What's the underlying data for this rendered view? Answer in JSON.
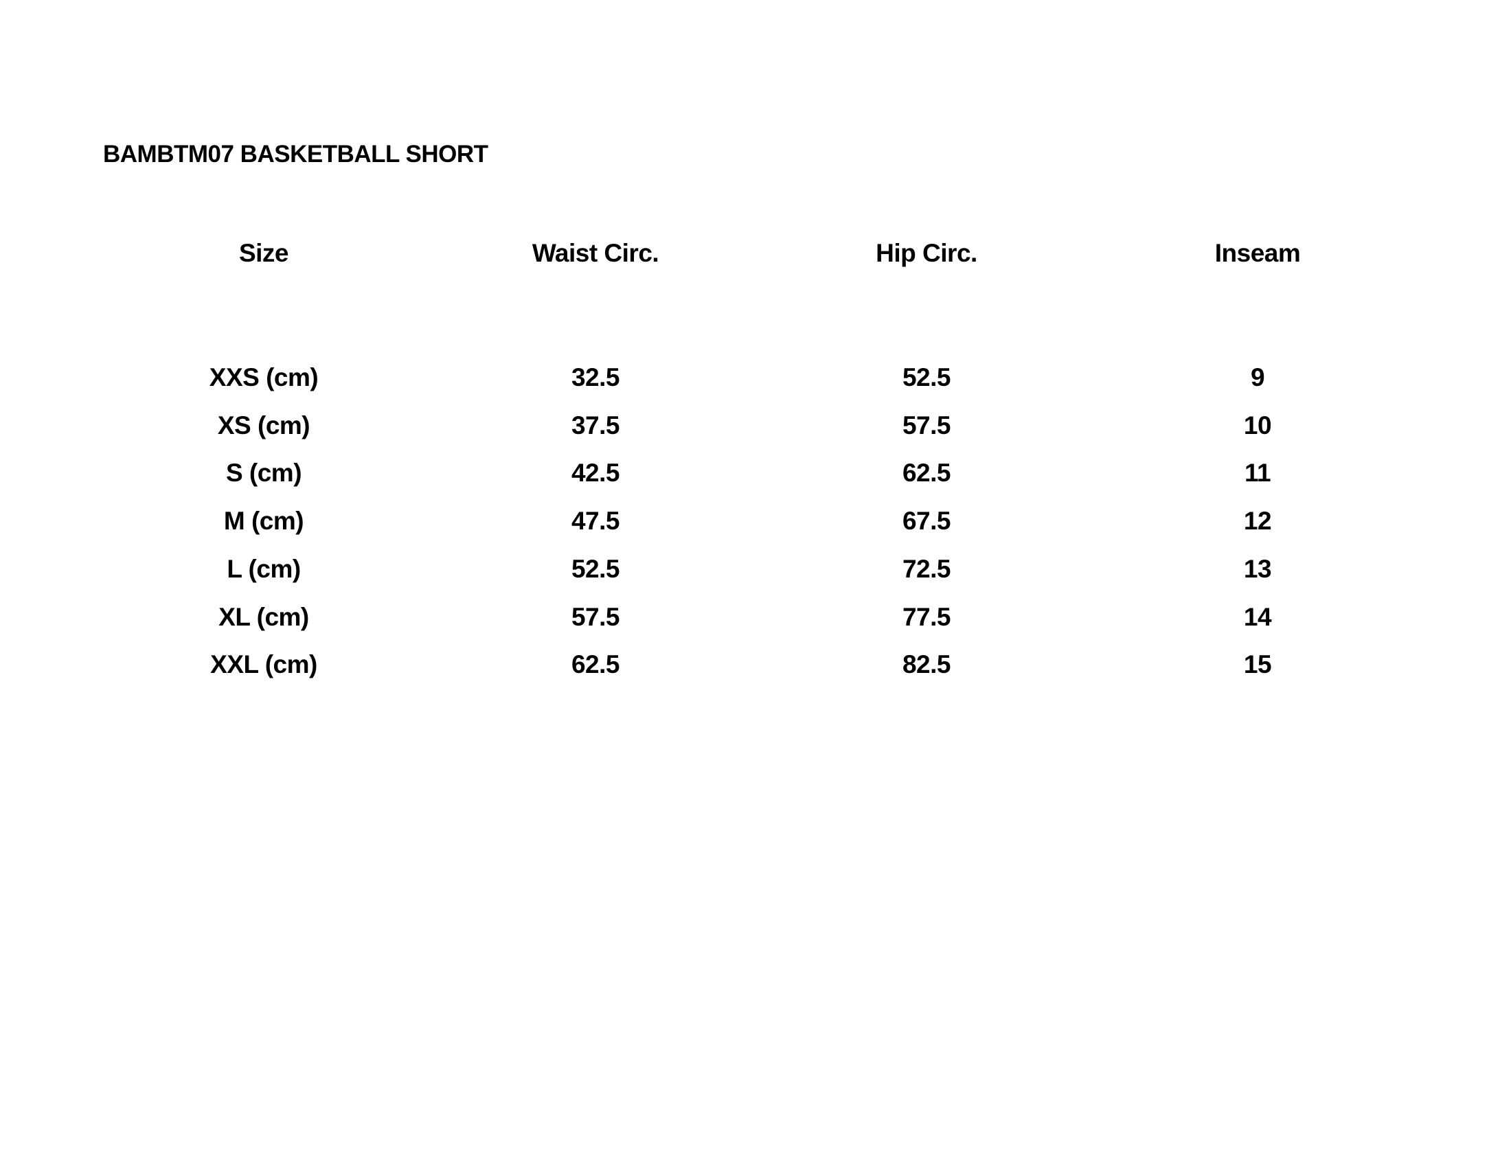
{
  "title": "BAMBTM07 BASKETBALL SHORT",
  "table": {
    "headers": [
      "Size",
      "Waist Circ.",
      "Hip Circ.",
      "Inseam"
    ],
    "rows": [
      [
        "XXS (cm)",
        "32.5",
        "52.5",
        "9"
      ],
      [
        "XS (cm)",
        "37.5",
        "57.5",
        "10"
      ],
      [
        "S (cm)",
        "42.5",
        "62.5",
        "11"
      ],
      [
        "M (cm)",
        "47.5",
        "67.5",
        "12"
      ],
      [
        "L (cm)",
        "52.5",
        "72.5",
        "13"
      ],
      [
        "XL (cm)",
        "57.5",
        "77.5",
        "14"
      ],
      [
        "XXL (cm)",
        "62.5",
        "82.5",
        "15"
      ]
    ]
  }
}
